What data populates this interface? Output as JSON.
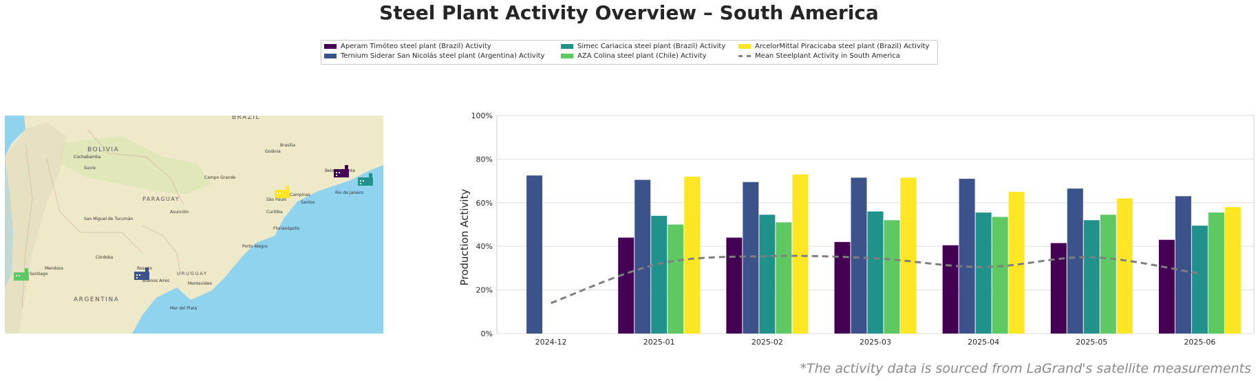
{
  "title": "Steel Plant Activity Overview – South America",
  "footnote": "*The activity data is sourced from LaGrand's satellite measurements",
  "legend": [
    {
      "label": "Aperam Timóteo steel plant (Brazil) Activity",
      "color": "#440154",
      "kind": "bar"
    },
    {
      "label": "Ternium Siderar San Nicolás steel plant (Argentina) Activity",
      "color": "#3b528b",
      "kind": "bar"
    },
    {
      "label": "Simec Cariacica steel plant (Brazil) Activity",
      "color": "#21918c",
      "kind": "bar"
    },
    {
      "label": "AZA Colina steel plant (Chile) Activity",
      "color": "#5ec962",
      "kind": "bar"
    },
    {
      "label": "ArcelorMittal Piracicaba steel plant (Brazil) Activity",
      "color": "#fde725",
      "kind": "bar"
    },
    {
      "label": "Mean Steelplant Activity in South America",
      "color": "#7f7f7f",
      "kind": "line"
    }
  ],
  "map": {
    "labels": {
      "brazil": "BRAZIL",
      "bolivia": "BOLIVIA",
      "paraguay": "PARAGUAY",
      "argentina": "ARGENTINA",
      "uruguay": "URUGUAY",
      "brasilia": "Brasília",
      "goiania": "Goiânia",
      "cochabamba": "Cochabamba",
      "sucre": "Sucre",
      "campo_grande": "Campo Grande",
      "asuncion": "Asunción",
      "san_miguel": "San Miguel de Tucumán",
      "campinas": "Campinas",
      "santos": "Santos",
      "sao_paulo": "São Paulo",
      "rio": "Rio de Janeiro",
      "belo": "Belo Horizonte",
      "curitiba": "Curitiba",
      "florianopolis": "Florianópolis",
      "porto_alegre": "Porto Alegre",
      "cordoba": "Córdoba",
      "rosario": "Rosario",
      "mendoza": "Mendoza",
      "santiago": "Santiago",
      "buenos_aires": "Buenos Aires",
      "montevideo": "Montevideo",
      "mar_del_plata": "Mar del Plata"
    }
  },
  "chart_data": {
    "type": "bar",
    "categories": [
      "2024-12",
      "2025-01",
      "2025-02",
      "2025-03",
      "2025-04",
      "2025-05",
      "2025-06"
    ],
    "series": [
      {
        "name": "Aperam Timóteo steel plant (Brazil) Activity",
        "color": "#440154",
        "values": [
          null,
          44,
          44,
          42,
          40.5,
          41.5,
          43
        ]
      },
      {
        "name": "Ternium Siderar San Nicolás steel plant (Argentina) Activity",
        "color": "#3b528b",
        "values": [
          72.5,
          70.5,
          69.5,
          71.5,
          71,
          66.5,
          63
        ]
      },
      {
        "name": "Simec Cariacica steel plant (Brazil) Activity",
        "color": "#21918c",
        "values": [
          null,
          54,
          54.5,
          56,
          55.5,
          52,
          49.5
        ]
      },
      {
        "name": "AZA Colina steel plant (Chile) Activity",
        "color": "#5ec962",
        "values": [
          null,
          50,
          51,
          52,
          53.5,
          54.5,
          55.5
        ]
      },
      {
        "name": "ArcelorMittal Piracicaba steel plant (Brazil) Activity",
        "color": "#fde725",
        "values": [
          null,
          72,
          73,
          71.5,
          65,
          62,
          58
        ]
      }
    ],
    "line": {
      "name": "Mean Steelplant Activity in South America",
      "color": "#7f7f7f",
      "values": [
        14,
        32,
        35.5,
        34.5,
        30.5,
        35,
        27.5
      ]
    },
    "ylabel": "Production Activity",
    "xlabel": "",
    "ylim": [
      0,
      100
    ],
    "yticks": [
      "0%",
      "20%",
      "40%",
      "60%",
      "80%",
      "100%"
    ],
    "grid": "horizontal"
  }
}
